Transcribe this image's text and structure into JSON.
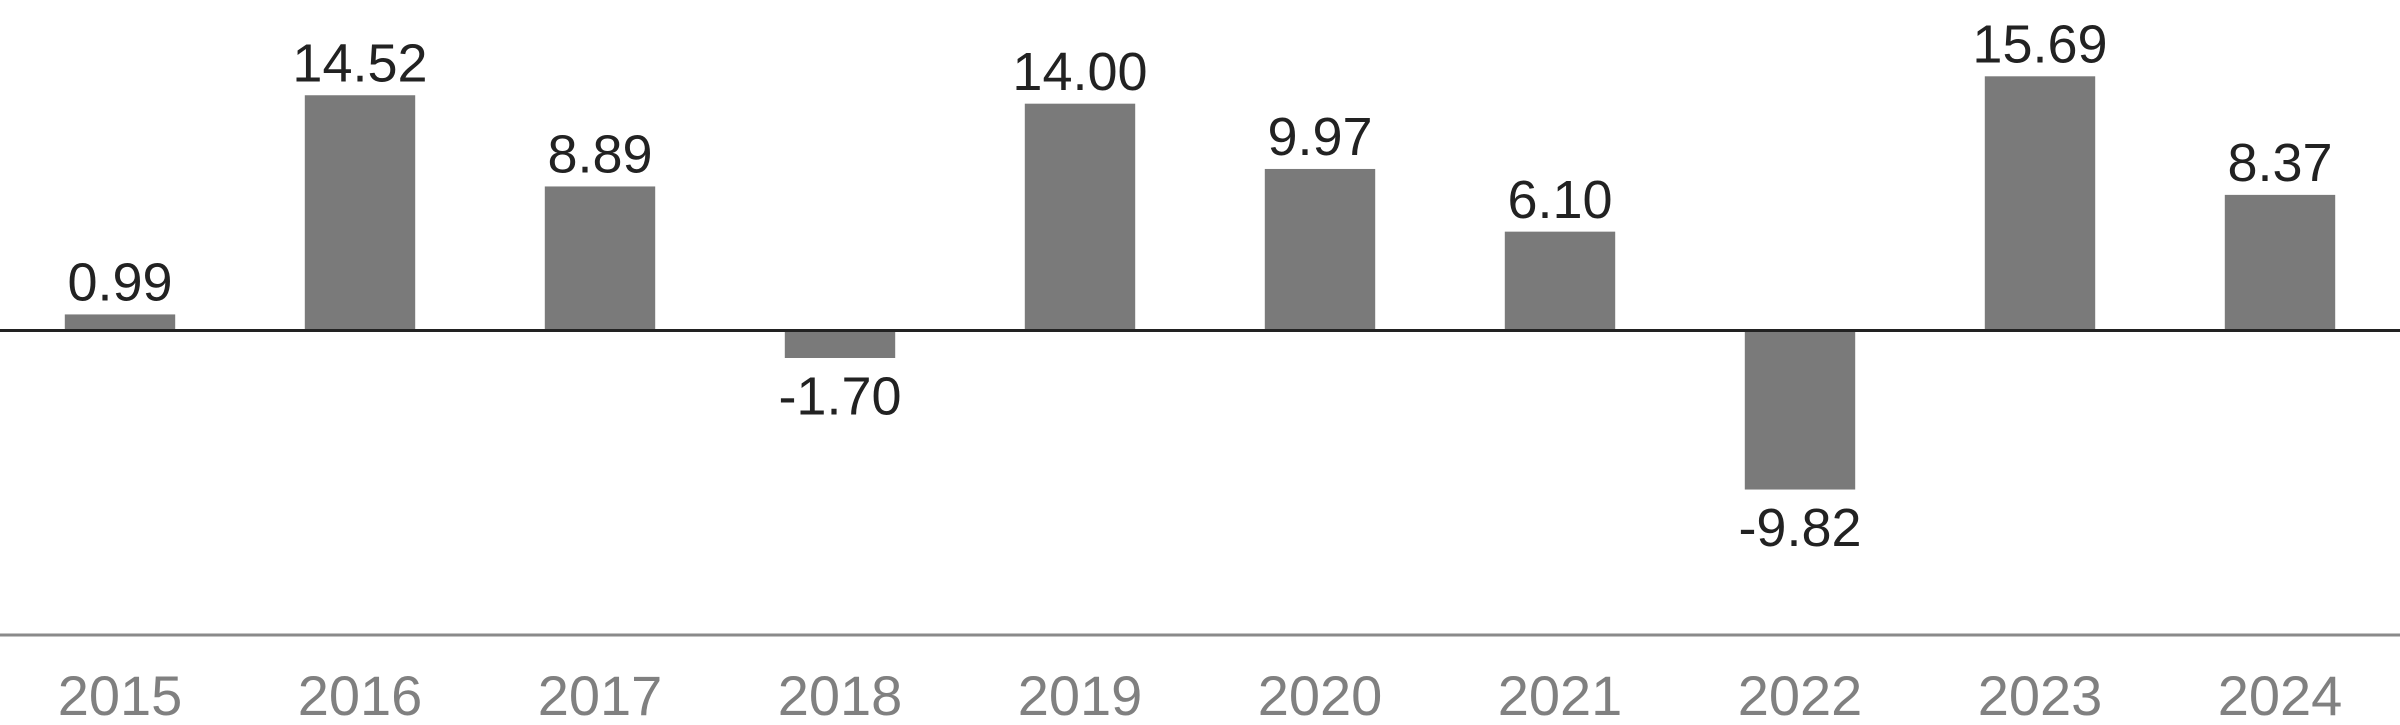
{
  "chart_data": {
    "type": "bar",
    "categories": [
      "2015",
      "2016",
      "2017",
      "2018",
      "2019",
      "2020",
      "2021",
      "2022",
      "2023",
      "2024"
    ],
    "values": [
      0.99,
      14.52,
      8.89,
      -1.7,
      14.0,
      9.97,
      6.1,
      -9.82,
      15.69,
      8.37
    ],
    "value_labels": [
      "0.99",
      "14.52",
      "8.89",
      "-1.70",
      "14.00",
      "9.97",
      "6.10",
      "-9.82",
      "15.69",
      "8.37"
    ],
    "color": "#7a7a7a",
    "ylim": [
      -18.8,
      20.4
    ]
  }
}
